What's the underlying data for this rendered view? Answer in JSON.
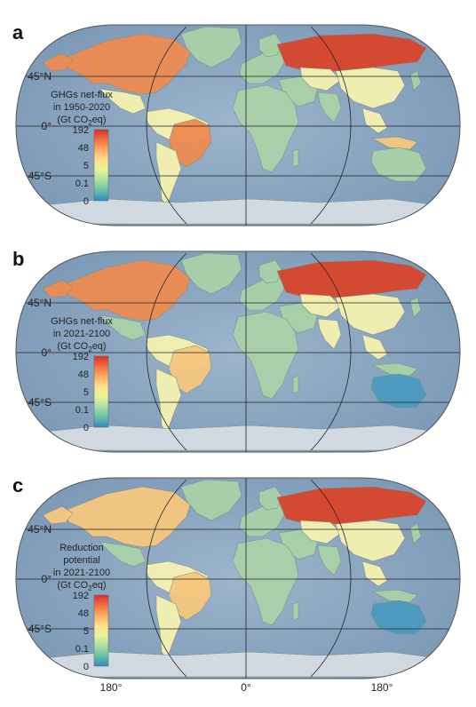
{
  "panels": [
    {
      "letter": "a",
      "title_lines": [
        "GHGs net-flux",
        "in 1950-2020",
        "(Gt CO",
        "2",
        "eq)"
      ]
    },
    {
      "letter": "b",
      "title_lines": [
        "GHGs net-flux",
        "in 2021-2100",
        "(Gt CO",
        "2",
        "eq)"
      ]
    },
    {
      "letter": "c",
      "title_lines": [
        "Reduction",
        "potential",
        "in 2021-2100",
        "(Gt CO",
        "2",
        "eq)"
      ]
    }
  ],
  "latitude_labels": [
    "45°N",
    "0°",
    "45°S"
  ],
  "colorbar_ticks": [
    "192",
    "48",
    "5",
    "0.1",
    "0"
  ],
  "longitude_labels": [
    "180°",
    "0°",
    "180°"
  ],
  "colors": {
    "ocean": "#8fa9c4",
    "ocean_dark": "#6f8fb0",
    "antarctica": "#d5dde3",
    "high": "#d9452b",
    "mid_high": "#ee8c52",
    "mid": "#f6c77e",
    "low": "#f5f2b0",
    "lower": "#a9d1a8",
    "lowest": "#4a9bbf"
  },
  "colorbar_stops": [
    "#d73027",
    "#f46d43",
    "#fdae61",
    "#fee090",
    "#e6f598",
    "#abdda4",
    "#66c2a5",
    "#3288bd"
  ],
  "country_levels": [
    {
      "panel": "a",
      "region": "north-america",
      "level": "mid_high"
    },
    {
      "panel": "a",
      "region": "greenland",
      "level": "lower"
    },
    {
      "panel": "a",
      "region": "mexico",
      "level": "low"
    },
    {
      "panel": "a",
      "region": "brazil",
      "level": "mid_high"
    },
    {
      "panel": "a",
      "region": "russia",
      "level": "high"
    },
    {
      "panel": "a",
      "region": "china",
      "level": "low"
    },
    {
      "panel": "a",
      "region": "africa",
      "level": "lower"
    },
    {
      "panel": "a",
      "region": "australia",
      "level": "lower"
    },
    {
      "panel": "b",
      "region": "north-america",
      "level": "mid_high"
    },
    {
      "panel": "b",
      "region": "greenland",
      "level": "lower"
    },
    {
      "panel": "b",
      "region": "brazil",
      "level": "mid"
    },
    {
      "panel": "b",
      "region": "russia",
      "level": "high"
    },
    {
      "panel": "b",
      "region": "china",
      "level": "low"
    },
    {
      "panel": "b",
      "region": "africa",
      "level": "lower"
    },
    {
      "panel": "b",
      "region": "australia",
      "level": "lowest"
    },
    {
      "panel": "c",
      "region": "north-america",
      "level": "mid"
    },
    {
      "panel": "c",
      "region": "greenland",
      "level": "lower"
    },
    {
      "panel": "c",
      "region": "brazil",
      "level": "mid"
    },
    {
      "panel": "c",
      "region": "russia",
      "level": "high"
    },
    {
      "panel": "c",
      "region": "china",
      "level": "low"
    },
    {
      "panel": "c",
      "region": "africa",
      "level": "lower"
    },
    {
      "panel": "c",
      "region": "australia",
      "level": "lowest"
    }
  ]
}
